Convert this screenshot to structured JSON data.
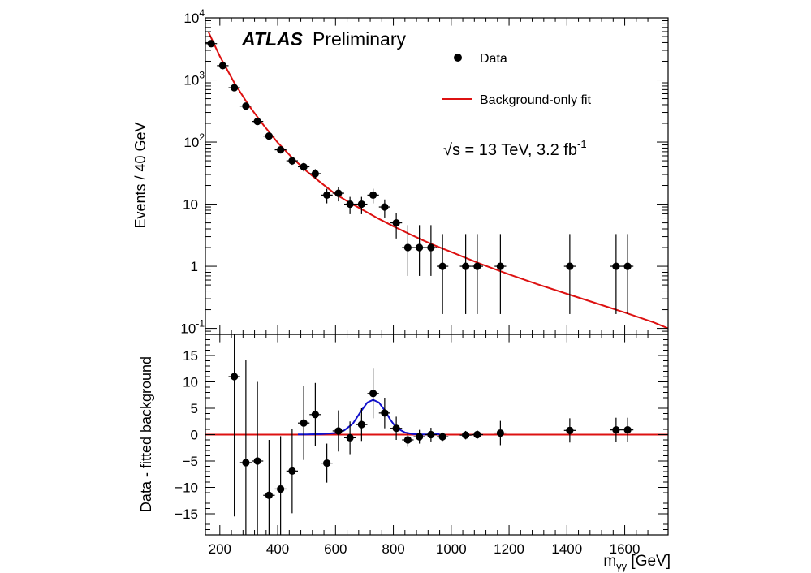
{
  "chart_data": [
    {
      "panel": "main",
      "type": "scatter",
      "yscale": "log",
      "ylabel": "Events / 40 GeV",
      "xlim": [
        150,
        1750
      ],
      "ylim": [
        0.08,
        10000
      ],
      "y_tick_values": [
        0.1,
        1,
        10,
        100,
        1000,
        10000
      ],
      "y_tick_labels": [
        {
          "base": "10",
          "exp": "-1"
        },
        {
          "base": "1",
          "exp": ""
        },
        {
          "base": "10",
          "exp": ""
        },
        {
          "base": "10",
          "exp": "2"
        },
        {
          "base": "10",
          "exp": "3"
        },
        {
          "base": "10",
          "exp": "4"
        }
      ],
      "labels": {
        "experiment": "ATLAS",
        "status": "Preliminary",
        "energy_prefix": "√s = 13 TeV, 3.2 fb",
        "energy_exp": "-1"
      },
      "legend": {
        "placement": "top-right",
        "entries": [
          "Data",
          "Background-only fit"
        ]
      },
      "series": [
        {
          "name": "Data",
          "x": [
            170,
            210,
            250,
            290,
            330,
            370,
            410,
            450,
            490,
            530,
            570,
            610,
            650,
            690,
            730,
            770,
            810,
            850,
            890,
            930,
            970,
            1050,
            1090,
            1170,
            1410,
            1570,
            1610
          ],
          "y": [
            3850,
            1700,
            750,
            380,
            215,
            125,
            75,
            50,
            40,
            31,
            14,
            15,
            10,
            10,
            14,
            9,
            5,
            2,
            2,
            2,
            1,
            1,
            1,
            1,
            1,
            1,
            1
          ],
          "yerr_low": [
            62,
            41,
            27,
            19,
            14,
            11,
            8.7,
            7,
            6.3,
            5.6,
            3.7,
            3.9,
            3.1,
            3.1,
            3.7,
            2.9,
            2.2,
            1.3,
            1.3,
            1.3,
            0.83,
            0.83,
            0.83,
            0.83,
            0.83,
            0.83,
            0.83
          ],
          "yerr_high": [
            62,
            41,
            27,
            19,
            14,
            11,
            8.7,
            7,
            6.3,
            5.6,
            3.7,
            3.9,
            3.1,
            3.1,
            3.7,
            2.9,
            2.2,
            2.6,
            2.6,
            2.6,
            2.3,
            2.3,
            2.3,
            2.3,
            2.3,
            2.3,
            2.3
          ],
          "color": "#000000"
        },
        {
          "name": "Background-only fit",
          "type": "line",
          "x": [
            160,
            200,
            250,
            300,
            350,
            400,
            450,
            500,
            550,
            600,
            650,
            700,
            750,
            800,
            850,
            900,
            950,
            1000,
            1100,
            1200,
            1300,
            1400,
            1500,
            1600,
            1700,
            1750
          ],
          "y": [
            6000,
            2400,
            900,
            390,
            190,
            98,
            56,
            34,
            22,
            14.5,
            10.5,
            7.8,
            5.8,
            4.4,
            3.4,
            2.65,
            2.1,
            1.7,
            1.1,
            0.74,
            0.51,
            0.36,
            0.255,
            0.18,
            0.125,
            0.1
          ],
          "color": "#dd1111"
        }
      ]
    },
    {
      "panel": "residual",
      "type": "scatter",
      "xlabel_main": "m",
      "xlabel_sub": "γγ",
      "xlabel_unit": " [GeV]",
      "ylabel": "Data - fitted background",
      "xlim": [
        150,
        1750
      ],
      "ylim": [
        -19,
        19
      ],
      "x_ticks": [
        200,
        400,
        600,
        800,
        1000,
        1200,
        1400,
        1600
      ],
      "y_ticks": [
        -15,
        -10,
        -5,
        0,
        5,
        10,
        15
      ],
      "series": [
        {
          "name": "Data",
          "x": [
            250,
            290,
            330,
            370,
            410,
            450,
            490,
            530,
            570,
            610,
            650,
            690,
            730,
            770,
            810,
            850,
            890,
            930,
            970,
            1050,
            1090,
            1170,
            1410,
            1570,
            1610
          ],
          "y": [
            11,
            -5.3,
            -5,
            -11.5,
            -10.3,
            -6.9,
            2.2,
            3.8,
            -5.4,
            0.7,
            -0.6,
            1.9,
            7.8,
            4.1,
            1.2,
            -1,
            -0.4,
            0,
            -0.4,
            -0.1,
            0,
            0.3,
            0.8,
            0.9,
            0.9
          ],
          "yerr": [
            26.5,
            19.5,
            15,
            10.5,
            10,
            8,
            7,
            6,
            3.7,
            3.9,
            3.1,
            3.1,
            4.7,
            2.9,
            2.2,
            1.3,
            1.3,
            1.3,
            0.8,
            0.8,
            0.8,
            2.3,
            2.3,
            2.3,
            2.3
          ],
          "color": "#000000"
        },
        {
          "name": "Background-only fit",
          "type": "line",
          "x": [
            150,
            1750
          ],
          "y": [
            0,
            0
          ],
          "color": "#dd1111"
        },
        {
          "name": "signal",
          "type": "line",
          "x": [
            470,
            500,
            550,
            600,
            630,
            660,
            690,
            710,
            730,
            750,
            770,
            790,
            810,
            840,
            870,
            900,
            930,
            960
          ],
          "y": [
            0.05,
            0.05,
            0.1,
            0.3,
            0.8,
            2.1,
            4.6,
            6.1,
            6.6,
            6.1,
            4.6,
            2.8,
            1.3,
            0.4,
            0.1,
            0.05,
            0.05,
            0.1
          ],
          "color": "#1111cc"
        }
      ]
    }
  ]
}
